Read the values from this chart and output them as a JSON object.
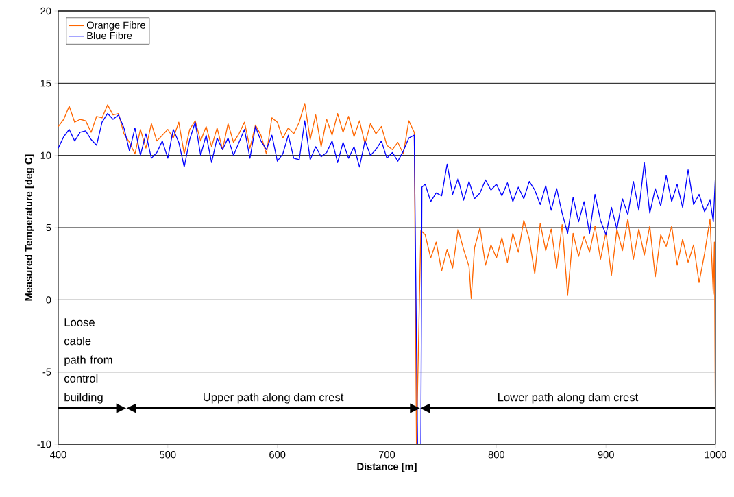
{
  "chart_data": {
    "type": "line",
    "xlabel": "Distance [m]",
    "ylabel": "Measured Temperature [deg C]",
    "xlim": [
      400,
      1000
    ],
    "ylim": [
      -10,
      20
    ],
    "xticks": [
      400,
      500,
      600,
      700,
      800,
      900,
      1000
    ],
    "yticks": [
      -10,
      -5,
      0,
      5,
      10,
      15,
      20
    ],
    "grid": "y",
    "legend": "top left",
    "line_style": "solid",
    "series": [
      {
        "name": "Orange Fibre",
        "color": "#ff6600",
        "x": [
          400,
          405,
          410,
          415,
          420,
          425,
          430,
          435,
          440,
          445,
          450,
          455,
          460,
          465,
          470,
          475,
          480,
          485,
          490,
          495,
          500,
          505,
          510,
          515,
          520,
          525,
          530,
          535,
          540,
          545,
          550,
          555,
          560,
          565,
          570,
          575,
          580,
          585,
          590,
          595,
          600,
          605,
          610,
          615,
          620,
          625,
          630,
          635,
          640,
          645,
          650,
          655,
          660,
          665,
          670,
          675,
          680,
          685,
          690,
          695,
          700,
          705,
          710,
          715,
          720,
          725,
          727,
          731,
          735,
          740,
          745,
          750,
          755,
          760,
          765,
          770,
          775,
          777,
          780,
          785,
          790,
          795,
          800,
          805,
          810,
          815,
          820,
          825,
          830,
          835,
          840,
          845,
          850,
          855,
          860,
          865,
          870,
          875,
          880,
          885,
          890,
          895,
          900,
          905,
          910,
          915,
          920,
          925,
          930,
          935,
          940,
          945,
          950,
          955,
          960,
          965,
          970,
          975,
          980,
          985,
          990,
          995,
          998,
          999,
          1000
        ],
        "values": [
          12.0,
          12.5,
          13.4,
          12.3,
          12.5,
          12.4,
          11.6,
          12.7,
          12.6,
          13.5,
          12.8,
          12.9,
          11.5,
          10.9,
          10.1,
          11.8,
          10.5,
          12.2,
          11.0,
          11.4,
          11.8,
          11.2,
          12.3,
          10.1,
          11.8,
          12.4,
          11.0,
          12.0,
          10.6,
          11.9,
          10.4,
          12.2,
          10.9,
          11.5,
          12.3,
          10.5,
          12.1,
          11.4,
          10.1,
          12.6,
          12.3,
          11.2,
          11.9,
          11.5,
          12.3,
          13.6,
          11.1,
          12.8,
          10.6,
          12.5,
          11.4,
          12.9,
          11.6,
          12.7,
          11.3,
          12.4,
          10.8,
          12.2,
          11.5,
          12.0,
          10.7,
          10.4,
          10.9,
          10.1,
          12.4,
          11.6,
          -10,
          4.8,
          4.5,
          2.9,
          4.0,
          2.0,
          3.5,
          2.2,
          4.9,
          3.5,
          2.3,
          0.1,
          3.6,
          5.0,
          2.4,
          3.8,
          2.9,
          4.3,
          2.6,
          4.6,
          3.3,
          5.5,
          4.2,
          1.8,
          5.3,
          3.4,
          4.9,
          2.2,
          5.2,
          0.3,
          4.6,
          3.0,
          4.4,
          3.3,
          5.1,
          2.8,
          4.7,
          1.7,
          4.9,
          3.4,
          5.6,
          2.8,
          4.9,
          3.1,
          5.1,
          1.6,
          4.5,
          3.7,
          5.1,
          2.4,
          4.2,
          2.6,
          3.8,
          1.2,
          3.2,
          5.6,
          0.4,
          4.0,
          -10
        ]
      },
      {
        "name": "Blue Fibre",
        "color": "#0000ff",
        "x": [
          400,
          405,
          410,
          415,
          420,
          425,
          430,
          435,
          440,
          445,
          450,
          455,
          460,
          465,
          470,
          475,
          480,
          485,
          490,
          495,
          500,
          505,
          510,
          515,
          520,
          525,
          530,
          535,
          540,
          545,
          550,
          555,
          560,
          565,
          570,
          575,
          580,
          585,
          590,
          595,
          600,
          605,
          610,
          615,
          620,
          625,
          630,
          635,
          640,
          645,
          650,
          655,
          660,
          665,
          670,
          675,
          680,
          685,
          690,
          695,
          700,
          705,
          710,
          715,
          720,
          725,
          728,
          731,
          732,
          735,
          740,
          745,
          750,
          755,
          760,
          765,
          770,
          775,
          780,
          785,
          790,
          795,
          800,
          805,
          810,
          815,
          820,
          825,
          830,
          835,
          840,
          845,
          850,
          855,
          860,
          865,
          870,
          875,
          880,
          885,
          890,
          895,
          900,
          905,
          910,
          915,
          920,
          925,
          930,
          935,
          940,
          945,
          950,
          955,
          960,
          965,
          970,
          975,
          980,
          985,
          990,
          995,
          998,
          1000
        ],
        "values": [
          10.5,
          11.3,
          11.8,
          11.0,
          11.6,
          11.7,
          11.1,
          10.7,
          12.3,
          12.9,
          12.5,
          12.8,
          11.9,
          10.3,
          11.9,
          10.0,
          11.5,
          9.8,
          10.2,
          11.0,
          9.8,
          11.8,
          10.9,
          9.2,
          11.1,
          12.3,
          10.0,
          11.4,
          9.5,
          11.2,
          10.4,
          11.2,
          10.0,
          10.9,
          11.8,
          9.8,
          12.0,
          11.0,
          10.4,
          11.4,
          9.6,
          10.1,
          11.4,
          9.8,
          9.7,
          12.4,
          9.7,
          10.6,
          9.9,
          10.2,
          11.0,
          9.5,
          10.9,
          9.8,
          10.6,
          9.2,
          11.0,
          10.0,
          10.4,
          11.0,
          9.8,
          10.2,
          9.6,
          10.3,
          11.2,
          11.4,
          -10,
          -10,
          7.8,
          8.0,
          6.8,
          7.4,
          7.2,
          9.4,
          7.3,
          8.4,
          6.9,
          8.2,
          7.0,
          7.4,
          8.3,
          7.6,
          8.0,
          7.2,
          8.1,
          6.8,
          7.8,
          7.0,
          8.2,
          7.6,
          6.6,
          7.9,
          6.2,
          7.7,
          6.0,
          4.6,
          7.1,
          5.4,
          6.8,
          4.6,
          7.3,
          5.5,
          4.5,
          6.4,
          4.9,
          7.0,
          5.9,
          8.2,
          6.2,
          9.5,
          6.0,
          7.7,
          6.5,
          8.6,
          6.8,
          8.0,
          6.4,
          9.0,
          6.6,
          7.3,
          6.1,
          6.9,
          5.4,
          8.7
        ]
      }
    ],
    "annotations": [
      "Loose cable path from control building",
      "Upper path along dam crest",
      "Lower path along dam crest"
    ]
  }
}
